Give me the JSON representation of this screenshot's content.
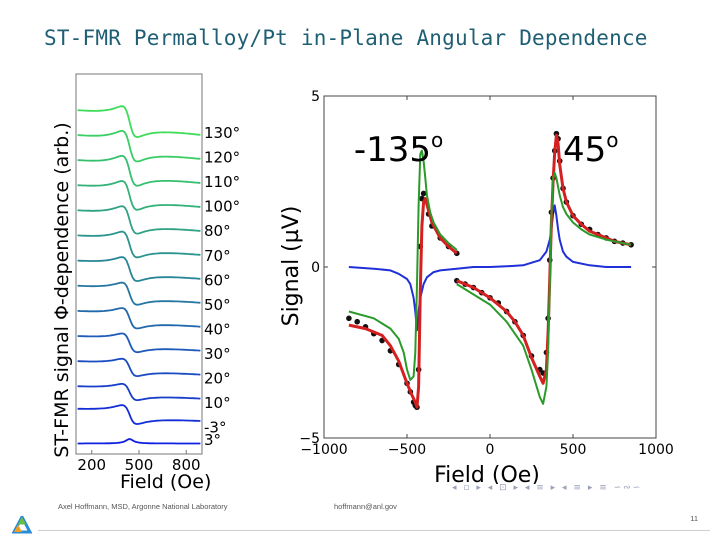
{
  "slide": {
    "title": "ST-FMR Permalloy/Pt in-Plane Angular Dependence",
    "footer_left": "Axel Hoffmann, MSD, Argonne National Laboratory",
    "footer_center": "hoffmann@anl.gov",
    "page_number": "11",
    "nav_glyphs": "◂ ▫ ▸ ◂ ⊡ ▸ ◂ ≡ ▸ ◂ ≡ ▸  ≡  ∽∾∽"
  },
  "colors": {
    "title": "#1f5f74",
    "gradient_top": "#3ddc5a",
    "gradient_bottom": "#1020e0",
    "data_dots": "#111111",
    "fit_red": "#d42020",
    "fit_green": "#2a9a2a",
    "symmetric_blue": "#2030d8"
  },
  "chart_data": [
    {
      "type": "line",
      "ylabel": "ST-FMR signal Φ-dependence (arb.)",
      "xlabel": "Field (Oe)",
      "xlim": [
        100,
        900
      ],
      "xticks": [
        "200",
        "500",
        "800"
      ],
      "angles": [
        "130°",
        "120°",
        "110°",
        "100°",
        "80°",
        "70°",
        "60°",
        "50°",
        "40°",
        "30°",
        "20°",
        "10°",
        "-3°",
        "3°"
      ]
    },
    {
      "type": "line",
      "ylabel": "Signal (µV)",
      "xlabel": "Field (Oe)",
      "xlim": [
        -1000,
        1000
      ],
      "ylim": [
        -5,
        5
      ],
      "xticks": [
        "−1000",
        "−500",
        "0",
        "500",
        "1000"
      ],
      "yticks": [
        "5",
        "0",
        "−5"
      ],
      "annotations": [
        {
          "text": "-135",
          "sup": "o",
          "x": -820,
          "y": 3.1
        },
        {
          "text": "45",
          "sup": "o",
          "x": 440,
          "y": 3.1
        }
      ],
      "series": [
        {
          "x": [
            -850,
            -800,
            -750,
            -700,
            -650,
            -600,
            -550,
            -500,
            -480,
            -460,
            -450,
            -440,
            -430,
            -420,
            -410,
            -400,
            -390,
            -370,
            -350,
            -300,
            -250,
            -200
          ],
          "values": [
            -1.5,
            -1.6,
            -1.75,
            -1.95,
            -2.15,
            -2.45,
            -2.85,
            -3.4,
            -3.65,
            -3.95,
            -4.05,
            -4.1,
            -3.0,
            0.6,
            2.0,
            2.15,
            1.95,
            1.55,
            1.2,
            0.85,
            0.6,
            0.4
          ]
        },
        {
          "x": [
            -200,
            -150,
            -100,
            -50,
            0,
            50,
            100,
            150,
            200,
            250,
            300,
            320,
            340,
            350,
            360,
            370,
            380,
            390,
            400,
            410,
            420,
            440,
            460,
            500,
            550,
            600,
            650,
            700,
            750,
            800,
            850
          ],
          "values": [
            -0.4,
            -0.5,
            -0.6,
            -0.75,
            -0.9,
            -1.05,
            -1.3,
            -1.6,
            -2.0,
            -2.6,
            -3.0,
            -3.1,
            -2.5,
            -1.5,
            0.2,
            1.6,
            2.6,
            3.4,
            3.9,
            3.75,
            3.1,
            2.3,
            1.9,
            1.5,
            1.25,
            1.1,
            0.95,
            0.85,
            0.75,
            0.7,
            0.65
          ]
        },
        {
          "x": [
            -850,
            -750,
            -650,
            -600,
            -550,
            -500,
            -470,
            -450,
            -440,
            -430,
            -420,
            -410,
            -400,
            -390,
            -370,
            -350,
            -300,
            -250,
            -200
          ],
          "values": [
            -1.7,
            -1.8,
            -2.0,
            -2.3,
            -2.75,
            -3.4,
            -3.75,
            -3.95,
            -4.1,
            -3.5,
            -0.7,
            1.2,
            1.9,
            2.0,
            1.65,
            1.3,
            0.85,
            0.6,
            0.4
          ]
        },
        {
          "x": [
            -200,
            -100,
            0,
            100,
            150,
            200,
            250,
            300,
            320,
            340,
            350,
            360,
            370,
            380,
            390,
            400,
            410,
            420,
            440,
            460,
            500,
            550,
            600,
            650,
            700,
            750,
            800,
            850
          ],
          "values": [
            -0.4,
            -0.6,
            -0.9,
            -1.3,
            -1.6,
            -2.0,
            -2.65,
            -3.2,
            -3.4,
            -3.0,
            -1.9,
            -0.3,
            1.3,
            2.5,
            3.35,
            3.85,
            3.6,
            3.0,
            2.3,
            1.9,
            1.5,
            1.25,
            1.05,
            0.95,
            0.85,
            0.75,
            0.7,
            0.65
          ]
        },
        {
          "x": [
            -850,
            -700,
            -600,
            -550,
            -520,
            -500,
            -480,
            -460,
            -450,
            -440,
            -430,
            -420,
            -410,
            -400,
            -390,
            -380,
            -360,
            -340,
            -300,
            -250,
            -200
          ],
          "values": [
            -1.3,
            -1.5,
            -1.8,
            -2.1,
            -2.5,
            -3.0,
            -3.3,
            -3.2,
            -2.5,
            -0.5,
            1.8,
            3.3,
            3.4,
            3.1,
            2.6,
            2.1,
            1.6,
            1.3,
            0.95,
            0.7,
            0.5
          ]
        },
        {
          "x": [
            -200,
            -100,
            0,
            100,
            200,
            250,
            300,
            320,
            340,
            350,
            360,
            370,
            380,
            390,
            400,
            420,
            440,
            460,
            500,
            550,
            600,
            700,
            800,
            850
          ],
          "values": [
            -0.5,
            -0.8,
            -1.1,
            -1.6,
            -2.3,
            -3.0,
            -3.8,
            -4.0,
            -3.5,
            -2.5,
            -0.5,
            1.5,
            2.6,
            2.75,
            2.6,
            2.1,
            1.75,
            1.55,
            1.3,
            1.1,
            0.95,
            0.8,
            0.7,
            0.65
          ]
        },
        {
          "x": [
            -850,
            -700,
            -600,
            -550,
            -500,
            -480,
            -460,
            -450,
            -440,
            -430,
            -420,
            -400,
            -380,
            -340,
            -300,
            -200,
            -100,
            0
          ],
          "values": [
            0,
            -0.05,
            -0.1,
            -0.2,
            -0.35,
            -0.5,
            -0.9,
            -1.3,
            -1.85,
            -1.3,
            -0.9,
            -0.5,
            -0.3,
            -0.15,
            -0.1,
            -0.05,
            0,
            0
          ]
        },
        {
          "x": [
            0,
            100,
            200,
            300,
            340,
            360,
            370,
            380,
            390,
            400,
            410,
            420,
            440,
            460,
            500,
            600,
            700,
            850
          ],
          "values": [
            0,
            0.02,
            0.05,
            0.2,
            0.45,
            0.8,
            1.1,
            1.55,
            1.8,
            1.5,
            1.1,
            0.8,
            0.45,
            0.3,
            0.15,
            0.05,
            0,
            0
          ]
        }
      ]
    }
  ]
}
